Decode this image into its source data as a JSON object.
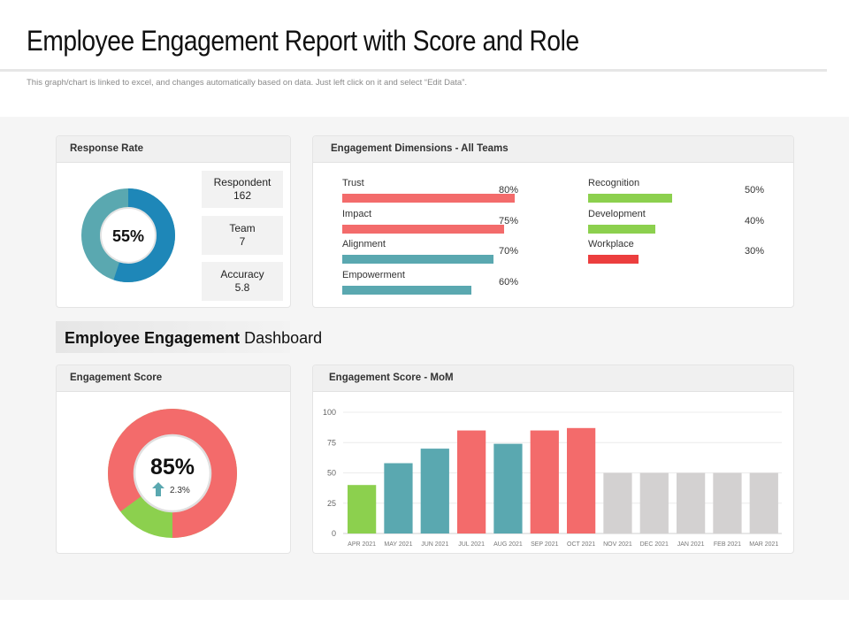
{
  "header": {
    "title": "Employee Engagement Report with Score and Role",
    "subtitle": "This graph/chart is linked to excel, and changes automatically  based on data. Just left click on it and select “Edit Data”."
  },
  "response_rate": {
    "heading": "Response Rate",
    "percent_label": "55%",
    "percent": 55,
    "stats": [
      {
        "label": "Respondent",
        "value": "162"
      },
      {
        "label": "Team",
        "value": "7"
      },
      {
        "label": "Accuracy",
        "value": "5.8"
      }
    ]
  },
  "dimensions": {
    "heading": "Engagement  Dimensions  - All Teams",
    "left": [
      {
        "label": "Trust",
        "value_label": "80%",
        "value": 80,
        "color": "#f36b6b"
      },
      {
        "label": "Impact",
        "value_label": "75%",
        "value": 75,
        "color": "#f36b6b"
      },
      {
        "label": "Alignment",
        "value_label": "70%",
        "value": 70,
        "color": "#5aa8b0"
      },
      {
        "label": "Empowerment",
        "value_label": "60%",
        "value": 60,
        "color": "#5aa8b0"
      }
    ],
    "right": [
      {
        "label": "Recognition",
        "value_label": "50%",
        "value": 50,
        "color": "#8cd04e"
      },
      {
        "label": "Development",
        "value_label": "40%",
        "value": 40,
        "color": "#8cd04e"
      },
      {
        "label": "Workplace",
        "value_label": "30%",
        "value": 30,
        "color": "#ec3e3e"
      }
    ]
  },
  "banner": {
    "bold": "Employee  Engagement",
    "normal": "Dashboard"
  },
  "score": {
    "heading": "Engagement  Score",
    "percent_label": "85%",
    "percent": 85,
    "change_label": "2.3%"
  },
  "chart_data": {
    "type": "bar",
    "title": "Engagement  Score  - MoM",
    "categories": [
      "APR 2021",
      "MAY 2021",
      "JUN 2021",
      "JUL 2021",
      "AUG 2021",
      "SEP 2021",
      "OCT 2021",
      "NOV 2021",
      "DEC 2021",
      "JAN 2021",
      "FEB 2021",
      "MAR 2021"
    ],
    "values": [
      40,
      58,
      70,
      85,
      74,
      85,
      87,
      50,
      50,
      50,
      50,
      50
    ],
    "colors": [
      "#8cd04e",
      "#5aa8b0",
      "#5aa8b0",
      "#f36b6b",
      "#5aa8b0",
      "#f36b6b",
      "#f36b6b",
      "#d3d1d1",
      "#d3d1d1",
      "#d3d1d1",
      "#d3d1d1",
      "#d3d1d1"
    ],
    "yticks": [
      "0",
      "25",
      "50",
      "75",
      "100"
    ],
    "ylim": [
      0,
      100
    ],
    "xlabel": "",
    "ylabel": "",
    "grid": true
  },
  "colors": {
    "response_fill": "#1e87b8",
    "response_rest": "#5aa8b0",
    "score_fill": "#f36b6b",
    "score_rest": "#8cd04e",
    "trend_arrow": "#5aa8b0"
  }
}
